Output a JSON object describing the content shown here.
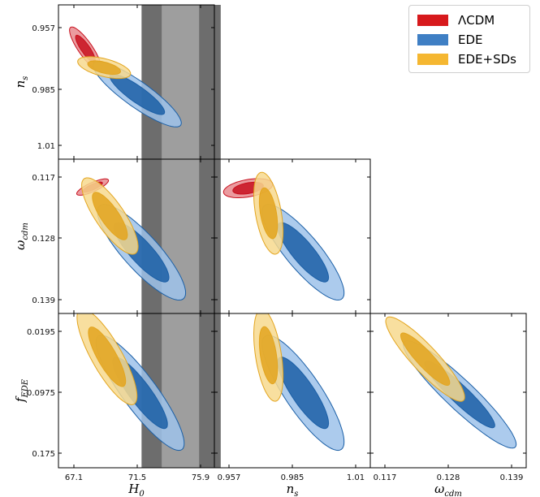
{
  "chart_data": {
    "type": "triangle-contour",
    "title": "",
    "parameters": [
      {
        "key": "H0",
        "label_main": "H",
        "label_sub": "0",
        "ticks": [
          "67.1",
          "71.5",
          "75.9"
        ],
        "range": [
          66.2,
          77.5
        ]
      },
      {
        "key": "ns",
        "label_main": "n",
        "label_sub": "s",
        "ticks": [
          "0.957",
          "0.985",
          "1.01"
        ],
        "range": [
          0.953,
          1.014
        ]
      },
      {
        "key": "omega_cdm",
        "label_main": "ω",
        "label_sub": "cdm",
        "ticks": [
          "0.117",
          "0.128",
          "0.139"
        ],
        "range": [
          0.1155,
          0.1405
        ]
      },
      {
        "key": "f_EDE",
        "label_main": "f",
        "label_sub": "EDE",
        "ticks": [
          "0.0195",
          "0.0975",
          "0.175"
        ],
        "range": [
          0.005,
          0.184
        ]
      }
    ],
    "legend": {
      "placement": "top-right",
      "entries": [
        {
          "name": "ΛCDM",
          "color": "#d7191c"
        },
        {
          "name": "EDE",
          "color": "#3f7fc4"
        },
        {
          "name": "EDE+SDs",
          "color": "#f5b731"
        }
      ]
    },
    "h0_prior_bands": {
      "inner": [
        73.2,
        75.8
      ],
      "outer": [
        71.8,
        77.3
      ],
      "inner_color": "#9e9e9e",
      "outer_color": "#6d6d6d"
    },
    "series": [
      {
        "name": "ΛCDM",
        "color_inner": "#c8101e",
        "color_outer": "#e88a8e",
        "panels": {
          "ns|H0": {
            "mean": [
              67.9,
              0.9665
            ],
            "sd": [
              0.45,
              0.004
            ],
            "rho": 0.85
          },
          "omega_cdm|H0": {
            "mean": [
              68.4,
              0.1188
            ],
            "sd": [
              0.45,
              0.0006
            ],
            "rho": -0.8
          },
          "omega_cdm|ns": {
            "mean": [
              0.965,
              0.119
            ],
            "sd": [
              0.0042,
              0.0007
            ],
            "rho": -0.4
          }
        }
      },
      {
        "name": "EDE",
        "color_inner": "#1b5fa6",
        "color_outer": "#9dc2ea",
        "panels": {
          "ns|H0": {
            "mean": [
              71.5,
              0.987
            ],
            "sd": [
              1.25,
              0.006
            ],
            "rho": 0.88
          },
          "omega_cdm|H0": {
            "mean": [
              71.8,
              0.1305
            ],
            "sd": [
              1.25,
              0.0035
            ],
            "rho": 0.85
          },
          "omega_cdm|ns": {
            "mean": [
              0.988,
              0.1305
            ],
            "sd": [
              0.007,
              0.0035
            ],
            "rho": 0.85
          },
          "f_EDE|H0": {
            "mean": [
              71.7,
              0.098
            ],
            "sd": [
              1.25,
              0.03
            ],
            "rho": 0.88
          },
          "f_EDE|ns": {
            "mean": [
              0.988,
              0.098
            ],
            "sd": [
              0.007,
              0.03
            ],
            "rho": 0.85
          },
          "f_EDE|omega_cdm": {
            "mean": [
              0.13,
              0.1
            ],
            "sd": [
              0.004,
              0.028
            ],
            "rho": 0.93
          }
        }
      },
      {
        "name": "EDE+SDs",
        "color_inner": "#e3a51f",
        "color_outer": "#f7d98e",
        "panels": {
          "ns|H0": {
            "mean": [
              69.2,
              0.975
            ],
            "sd": [
              0.75,
              0.002
            ],
            "rho": 0.55
          },
          "omega_cdm|H0": {
            "mean": [
              69.6,
              0.124
            ],
            "sd": [
              0.8,
              0.0028
            ],
            "rho": 0.8
          },
          "omega_cdm|ns": {
            "mean": [
              0.9735,
              0.1235
            ],
            "sd": [
              0.0025,
              0.003
            ],
            "rho": 0.45
          },
          "f_EDE|H0": {
            "mean": [
              69.4,
              0.052
            ],
            "sd": [
              0.85,
              0.025
            ],
            "rho": 0.82
          },
          "f_EDE|ns": {
            "mean": [
              0.9735,
              0.05
            ],
            "sd": [
              0.0025,
              0.024
            ],
            "rho": 0.45
          },
          "f_EDE|omega_cdm": {
            "mean": [
              0.124,
              0.055
            ],
            "sd": [
              0.0028,
              0.022
            ],
            "rho": 0.9
          }
        }
      }
    ]
  }
}
